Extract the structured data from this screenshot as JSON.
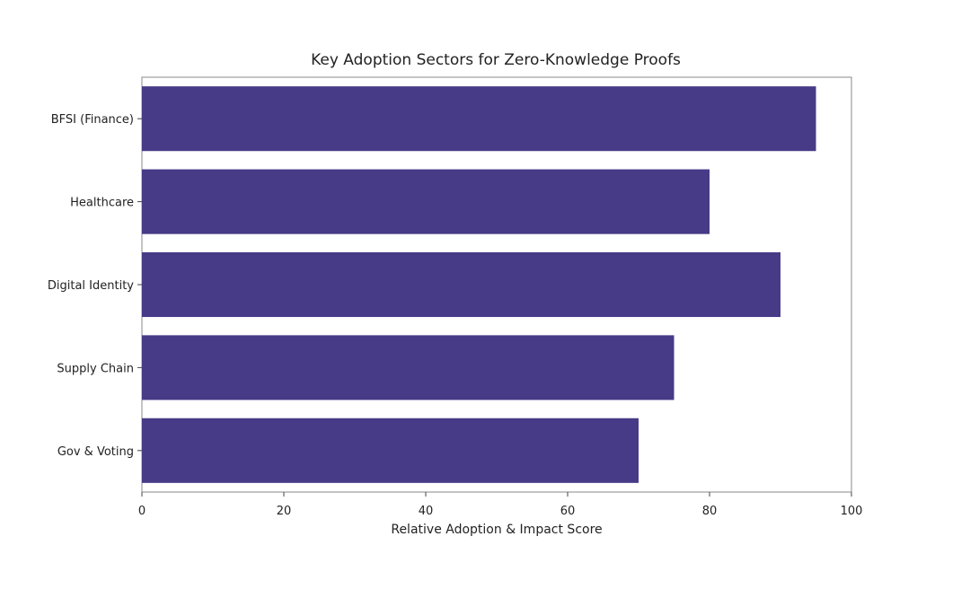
{
  "chart_data": {
    "type": "bar",
    "orientation": "horizontal",
    "title": "Key Adoption Sectors for Zero-Knowledge Proofs",
    "xlabel": "Relative Adoption & Impact Score",
    "ylabel": "",
    "categories": [
      "BFSI (Finance)",
      "Healthcare",
      "Digital Identity",
      "Supply Chain",
      "Gov & Voting"
    ],
    "values": [
      95,
      80,
      90,
      75,
      70
    ],
    "xlim": [
      0,
      100
    ],
    "xticks": [
      0,
      20,
      40,
      60,
      80,
      100
    ],
    "grid": false,
    "legend": "none",
    "bar_color": "#473a87"
  }
}
